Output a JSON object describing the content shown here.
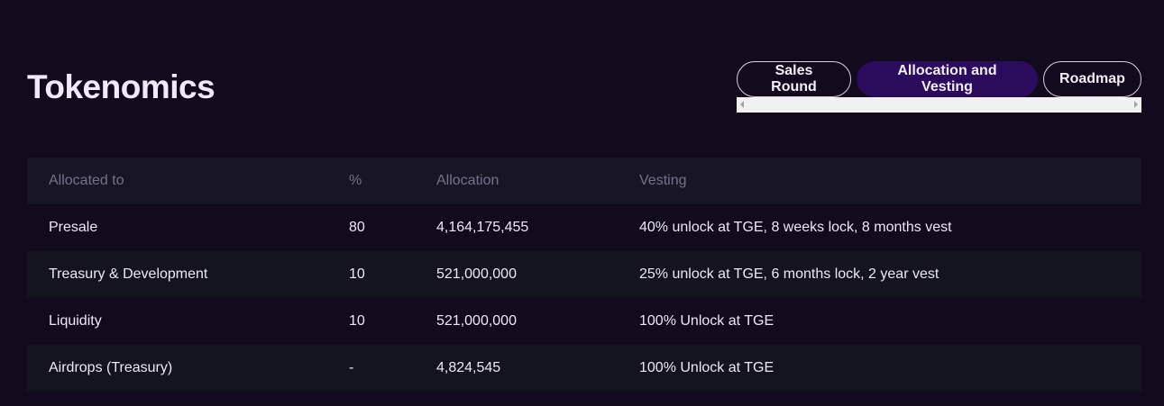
{
  "header": {
    "title": "Tokenomics"
  },
  "tabs": [
    {
      "label": "Sales Round",
      "active": false
    },
    {
      "label": "Allocation and Vesting",
      "active": true
    },
    {
      "label": "Roadmap",
      "active": false
    }
  ],
  "table": {
    "columns": [
      "Allocated to",
      "%",
      "Allocation",
      "Vesting"
    ],
    "rows": [
      {
        "allocated_to": "Presale",
        "percent": "80",
        "allocation": "4,164,175,455",
        "vesting": "40% unlock at TGE, 8 weeks lock, 8 months vest"
      },
      {
        "allocated_to": "Treasury & Development",
        "percent": "10",
        "allocation": "521,000,000",
        "vesting": "25% unlock at TGE, 6 months lock, 2 year vest"
      },
      {
        "allocated_to": "Liquidity",
        "percent": "10",
        "allocation": "521,000,000",
        "vesting": "100% Unlock at TGE"
      },
      {
        "allocated_to": "Airdrops (Treasury)",
        "percent": "-",
        "allocation": "4,824,545",
        "vesting": "100% Unlock at TGE"
      }
    ]
  },
  "colors": {
    "background": "#120b1d",
    "active_tab": "#2a0b5c",
    "header_row": "#181624",
    "muted_text": "#77708c"
  }
}
